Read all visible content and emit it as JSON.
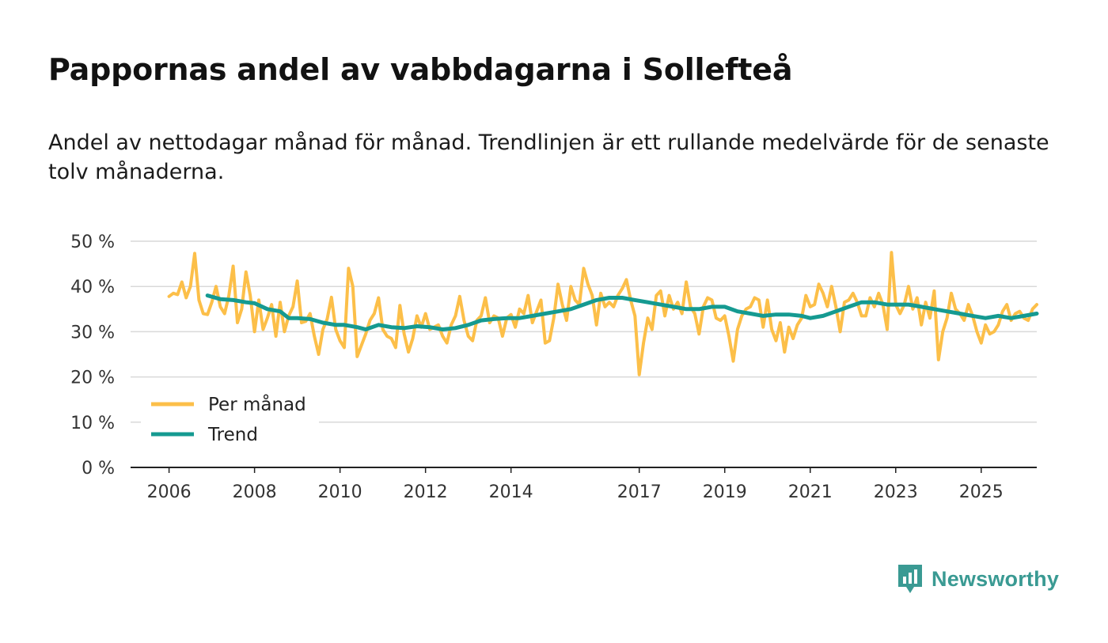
{
  "title": "Pappornas andel av vabbdagarna i Sollefteå",
  "subtitle": "Andel av nettodagar månad för månad. Trendlinjen är ett rullande medelvärde för de senaste tolv månaderna.",
  "brand": "Newsworthy",
  "colors": {
    "monthly": "#fcbf49",
    "trend": "#159a91",
    "grid": "#d9d9d9",
    "axis": "#222222",
    "brand": "#3a9a93"
  },
  "chart_data": {
    "type": "line",
    "title": "Pappornas andel av vabbdagarna i Sollefteå",
    "xlabel": "",
    "ylabel": "",
    "ylim": [
      0,
      50
    ],
    "xlim": [
      2005.1,
      2026.3
    ],
    "y_ticks": [
      0,
      10,
      20,
      30,
      40,
      50
    ],
    "y_tick_labels": [
      "0 %",
      "10 %",
      "20 %",
      "30 %",
      "40 %",
      "50 %"
    ],
    "x_ticks": [
      2006,
      2008,
      2010,
      2012,
      2014,
      2017,
      2019,
      2021,
      2023,
      2025
    ],
    "x_tick_labels": [
      "2006",
      "2008",
      "2010",
      "2012",
      "2014",
      "2017",
      "2019",
      "2021",
      "2023",
      "2025"
    ],
    "legend": {
      "position": "bottom-left",
      "entries": [
        "Per månad",
        "Trend"
      ]
    },
    "series": [
      {
        "name": "Per månad",
        "color": "#fcbf49",
        "points": [
          [
            2006.0,
            37.8
          ],
          [
            2006.1,
            38.5
          ],
          [
            2006.2,
            38.2
          ],
          [
            2006.3,
            41.0
          ],
          [
            2006.4,
            37.5
          ],
          [
            2006.5,
            40.0
          ],
          [
            2006.6,
            47.3
          ],
          [
            2006.7,
            37.0
          ],
          [
            2006.8,
            34.0
          ],
          [
            2006.9,
            33.8
          ],
          [
            2007.0,
            36.5
          ],
          [
            2007.1,
            40.0
          ],
          [
            2007.2,
            35.5
          ],
          [
            2007.3,
            34.0
          ],
          [
            2007.4,
            38.0
          ],
          [
            2007.5,
            44.5
          ],
          [
            2007.6,
            32.0
          ],
          [
            2007.7,
            35.0
          ],
          [
            2007.8,
            43.2
          ],
          [
            2007.9,
            38.0
          ],
          [
            2008.0,
            30.0
          ],
          [
            2008.1,
            37.0
          ],
          [
            2008.2,
            30.5
          ],
          [
            2008.3,
            33.0
          ],
          [
            2008.4,
            36.0
          ],
          [
            2008.5,
            29.0
          ],
          [
            2008.6,
            36.5
          ],
          [
            2008.7,
            30.0
          ],
          [
            2008.8,
            33.5
          ],
          [
            2008.9,
            35.5
          ],
          [
            2009.0,
            41.2
          ],
          [
            2009.1,
            32.0
          ],
          [
            2009.2,
            32.3
          ],
          [
            2009.3,
            34.0
          ],
          [
            2009.4,
            29.0
          ],
          [
            2009.5,
            25.0
          ],
          [
            2009.6,
            30.5
          ],
          [
            2009.7,
            32.8
          ],
          [
            2009.8,
            37.6
          ],
          [
            2009.9,
            30.5
          ],
          [
            2010.0,
            28.0
          ],
          [
            2010.1,
            26.5
          ],
          [
            2010.2,
            44.0
          ],
          [
            2010.3,
            40.0
          ],
          [
            2010.4,
            24.5
          ],
          [
            2010.5,
            27.0
          ],
          [
            2010.6,
            29.5
          ],
          [
            2010.7,
            32.5
          ],
          [
            2010.8,
            34.0
          ],
          [
            2010.9,
            37.5
          ],
          [
            2011.0,
            30.5
          ],
          [
            2011.1,
            29.0
          ],
          [
            2011.2,
            28.5
          ],
          [
            2011.3,
            26.5
          ],
          [
            2011.4,
            35.8
          ],
          [
            2011.5,
            29.5
          ],
          [
            2011.6,
            25.5
          ],
          [
            2011.7,
            28.5
          ],
          [
            2011.8,
            33.5
          ],
          [
            2011.9,
            31.0
          ],
          [
            2012.0,
            34.0
          ],
          [
            2012.1,
            30.5
          ],
          [
            2012.2,
            31.0
          ],
          [
            2012.3,
            31.5
          ],
          [
            2012.4,
            29.0
          ],
          [
            2012.5,
            27.5
          ],
          [
            2012.6,
            31.5
          ],
          [
            2012.7,
            33.5
          ],
          [
            2012.8,
            37.8
          ],
          [
            2012.9,
            32.5
          ],
          [
            2013.0,
            29.0
          ],
          [
            2013.1,
            28.0
          ],
          [
            2013.2,
            32.5
          ],
          [
            2013.3,
            33.5
          ],
          [
            2013.4,
            37.5
          ],
          [
            2013.5,
            32.0
          ],
          [
            2013.6,
            33.5
          ],
          [
            2013.7,
            33.0
          ],
          [
            2013.8,
            29.0
          ],
          [
            2013.9,
            33.0
          ],
          [
            2014.0,
            33.8
          ],
          [
            2014.1,
            31.0
          ],
          [
            2014.2,
            35.0
          ],
          [
            2014.3,
            34.0
          ],
          [
            2014.4,
            38.0
          ],
          [
            2014.5,
            32.0
          ],
          [
            2014.6,
            34.5
          ],
          [
            2014.7,
            37.0
          ],
          [
            2014.8,
            27.5
          ],
          [
            2014.9,
            28.0
          ],
          [
            2015.0,
            33.0
          ],
          [
            2015.1,
            40.5
          ],
          [
            2015.2,
            36.0
          ],
          [
            2015.3,
            32.5
          ],
          [
            2015.4,
            40.0
          ],
          [
            2015.5,
            37.0
          ],
          [
            2015.6,
            36.0
          ],
          [
            2015.7,
            44.0
          ],
          [
            2015.8,
            40.5
          ],
          [
            2015.9,
            38.0
          ],
          [
            2016.0,
            31.5
          ],
          [
            2016.1,
            38.5
          ],
          [
            2016.2,
            35.5
          ],
          [
            2016.3,
            36.5
          ],
          [
            2016.4,
            35.5
          ],
          [
            2016.5,
            38.0
          ],
          [
            2016.6,
            39.5
          ],
          [
            2016.7,
            41.5
          ],
          [
            2016.8,
            37.0
          ],
          [
            2016.9,
            33.5
          ],
          [
            2017.0,
            20.5
          ],
          [
            2017.1,
            27.5
          ],
          [
            2017.2,
            33.0
          ],
          [
            2017.3,
            30.5
          ],
          [
            2017.4,
            38.0
          ],
          [
            2017.5,
            39.0
          ],
          [
            2017.6,
            33.5
          ],
          [
            2017.7,
            38.0
          ],
          [
            2017.8,
            35.0
          ],
          [
            2017.9,
            36.5
          ],
          [
            2018.0,
            34.0
          ],
          [
            2018.1,
            41.0
          ],
          [
            2018.2,
            35.5
          ],
          [
            2018.3,
            34.0
          ],
          [
            2018.4,
            29.5
          ],
          [
            2018.5,
            35.5
          ],
          [
            2018.6,
            37.5
          ],
          [
            2018.7,
            37.0
          ],
          [
            2018.8,
            33.0
          ],
          [
            2018.9,
            32.5
          ],
          [
            2019.0,
            33.5
          ],
          [
            2019.1,
            29.0
          ],
          [
            2019.2,
            23.5
          ],
          [
            2019.3,
            30.5
          ],
          [
            2019.4,
            33.5
          ],
          [
            2019.5,
            35.0
          ],
          [
            2019.6,
            35.5
          ],
          [
            2019.7,
            37.5
          ],
          [
            2019.8,
            37.0
          ],
          [
            2019.9,
            31.0
          ],
          [
            2020.0,
            37.0
          ],
          [
            2020.1,
            30.5
          ],
          [
            2020.2,
            28.0
          ],
          [
            2020.3,
            32.0
          ],
          [
            2020.4,
            25.5
          ],
          [
            2020.5,
            31.0
          ],
          [
            2020.6,
            28.5
          ],
          [
            2020.7,
            31.5
          ],
          [
            2020.8,
            33.0
          ],
          [
            2020.9,
            38.0
          ],
          [
            2021.0,
            35.5
          ],
          [
            2021.1,
            36.0
          ],
          [
            2021.2,
            40.5
          ],
          [
            2021.3,
            38.5
          ],
          [
            2021.4,
            35.5
          ],
          [
            2021.5,
            40.0
          ],
          [
            2021.6,
            35.5
          ],
          [
            2021.7,
            30.0
          ],
          [
            2021.8,
            36.5
          ],
          [
            2021.9,
            37.0
          ],
          [
            2022.0,
            38.5
          ],
          [
            2022.1,
            36.5
          ],
          [
            2022.2,
            33.5
          ],
          [
            2022.3,
            33.5
          ],
          [
            2022.4,
            37.5
          ],
          [
            2022.5,
            35.5
          ],
          [
            2022.6,
            38.5
          ],
          [
            2022.7,
            36.0
          ],
          [
            2022.8,
            30.5
          ],
          [
            2022.9,
            47.5
          ],
          [
            2023.0,
            36.0
          ],
          [
            2023.1,
            34.0
          ],
          [
            2023.2,
            36.0
          ],
          [
            2023.3,
            40.0
          ],
          [
            2023.4,
            35.0
          ],
          [
            2023.5,
            37.5
          ],
          [
            2023.6,
            31.5
          ],
          [
            2023.7,
            36.5
          ],
          [
            2023.8,
            33.0
          ],
          [
            2023.9,
            39.0
          ],
          [
            2024.0,
            23.8
          ],
          [
            2024.1,
            30.0
          ],
          [
            2024.2,
            33.0
          ],
          [
            2024.3,
            38.5
          ],
          [
            2024.4,
            35.0
          ],
          [
            2024.5,
            34.0
          ],
          [
            2024.6,
            32.5
          ],
          [
            2024.7,
            36.0
          ],
          [
            2024.8,
            33.5
          ],
          [
            2024.9,
            30.0
          ],
          [
            2025.0,
            27.5
          ],
          [
            2025.1,
            31.5
          ],
          [
            2025.2,
            29.5
          ],
          [
            2025.3,
            30.0
          ],
          [
            2025.4,
            31.5
          ],
          [
            2025.5,
            34.5
          ],
          [
            2025.6,
            36.0
          ],
          [
            2025.7,
            32.5
          ],
          [
            2025.8,
            34.0
          ],
          [
            2025.9,
            34.5
          ],
          [
            2026.0,
            33.0
          ],
          [
            2026.1,
            32.5
          ],
          [
            2026.2,
            35.0
          ],
          [
            2026.3,
            36.0
          ]
        ]
      },
      {
        "name": "Trend",
        "color": "#159a91",
        "points": [
          [
            2006.9,
            38.0
          ],
          [
            2007.2,
            37.2
          ],
          [
            2007.5,
            37.0
          ],
          [
            2007.8,
            36.5
          ],
          [
            2008.0,
            36.3
          ],
          [
            2008.3,
            35.0
          ],
          [
            2008.6,
            34.5
          ],
          [
            2008.8,
            33.0
          ],
          [
            2009.0,
            33.0
          ],
          [
            2009.3,
            32.8
          ],
          [
            2009.6,
            32.0
          ],
          [
            2009.9,
            31.5
          ],
          [
            2010.1,
            31.5
          ],
          [
            2010.4,
            31.0
          ],
          [
            2010.6,
            30.5
          ],
          [
            2010.9,
            31.5
          ],
          [
            2011.2,
            31.0
          ],
          [
            2011.5,
            30.8
          ],
          [
            2011.8,
            31.2
          ],
          [
            2012.1,
            31.0
          ],
          [
            2012.4,
            30.5
          ],
          [
            2012.7,
            30.8
          ],
          [
            2013.0,
            31.5
          ],
          [
            2013.3,
            32.5
          ],
          [
            2013.6,
            32.8
          ],
          [
            2013.9,
            33.0
          ],
          [
            2014.2,
            33.0
          ],
          [
            2014.5,
            33.5
          ],
          [
            2014.8,
            34.0
          ],
          [
            2015.1,
            34.5
          ],
          [
            2015.4,
            35.0
          ],
          [
            2015.7,
            36.0
          ],
          [
            2016.0,
            37.0
          ],
          [
            2016.3,
            37.5
          ],
          [
            2016.6,
            37.5
          ],
          [
            2016.9,
            37.0
          ],
          [
            2017.2,
            36.5
          ],
          [
            2017.5,
            36.0
          ],
          [
            2017.8,
            35.5
          ],
          [
            2018.1,
            35.0
          ],
          [
            2018.4,
            35.0
          ],
          [
            2018.7,
            35.5
          ],
          [
            2019.0,
            35.5
          ],
          [
            2019.3,
            34.5
          ],
          [
            2019.6,
            34.0
          ],
          [
            2019.9,
            33.5
          ],
          [
            2020.2,
            33.8
          ],
          [
            2020.5,
            33.8
          ],
          [
            2020.8,
            33.5
          ],
          [
            2021.0,
            33.0
          ],
          [
            2021.3,
            33.5
          ],
          [
            2021.6,
            34.5
          ],
          [
            2021.9,
            35.5
          ],
          [
            2022.2,
            36.5
          ],
          [
            2022.5,
            36.5
          ],
          [
            2022.8,
            36.0
          ],
          [
            2023.0,
            36.0
          ],
          [
            2023.3,
            36.0
          ],
          [
            2023.6,
            35.5
          ],
          [
            2023.9,
            35.0
          ],
          [
            2024.2,
            34.5
          ],
          [
            2024.5,
            34.0
          ],
          [
            2024.8,
            33.5
          ],
          [
            2025.1,
            33.0
          ],
          [
            2025.4,
            33.5
          ],
          [
            2025.7,
            33.0
          ],
          [
            2026.0,
            33.5
          ],
          [
            2026.3,
            34.0
          ]
        ]
      }
    ]
  }
}
